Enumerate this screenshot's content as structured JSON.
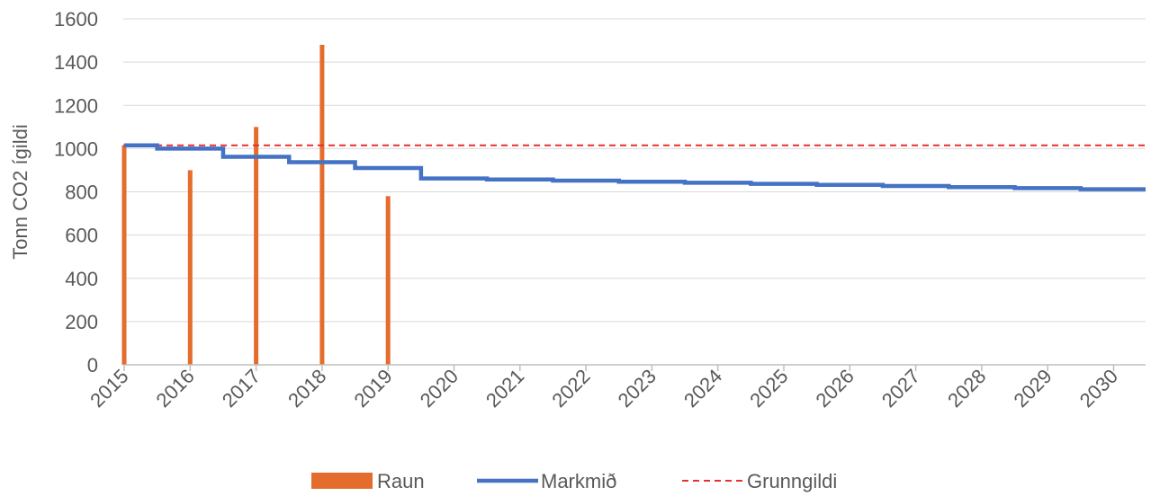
{
  "chart_data": {
    "type": "bar",
    "title": "",
    "xlabel": "",
    "ylabel": "Tonn CO2 ígildi",
    "ylim": [
      0,
      1600
    ],
    "yticks": [
      0,
      200,
      400,
      600,
      800,
      1000,
      1200,
      1400,
      1600
    ],
    "xticks": [
      "2015",
      "2016",
      "2017",
      "2018",
      "2019",
      "2020",
      "2021",
      "2022",
      "2023",
      "2024",
      "2025",
      "2026",
      "2027",
      "2028",
      "2029",
      "2030"
    ],
    "grid": true,
    "legend_position": "bottom",
    "series": [
      {
        "name": "Raun",
        "kind": "bar",
        "color": "#E46C2C",
        "x": [
          2015,
          2016,
          2017,
          2018,
          2019
        ],
        "values": [
          1015,
          900,
          1100,
          1480,
          780
        ]
      },
      {
        "name": "Markmið",
        "kind": "step-line",
        "color": "#4472C4",
        "x": [
          2015,
          2016,
          2017,
          2018,
          2019,
          2020,
          2021,
          2022,
          2023,
          2024,
          2025,
          2026,
          2027,
          2028,
          2029,
          2030
        ],
        "values": [
          1015,
          1000,
          962,
          937,
          910,
          862,
          857,
          852,
          847,
          842,
          837,
          832,
          827,
          822,
          817,
          812
        ]
      },
      {
        "name": "Grunngildi",
        "kind": "dashed-line",
        "color": "#E8312F",
        "value": 1015
      }
    ]
  }
}
